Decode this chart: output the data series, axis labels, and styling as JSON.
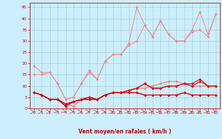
{
  "xlabel": "Vent moyen/en rafales ( km/h )",
  "background_color": "#cceeff",
  "grid_color": "#99cccc",
  "x_ticks": [
    0,
    1,
    2,
    3,
    4,
    5,
    6,
    7,
    8,
    9,
    10,
    11,
    12,
    13,
    14,
    15,
    16,
    17,
    18,
    19,
    20,
    21,
    22,
    23
  ],
  "y_ticks": [
    0,
    5,
    10,
    15,
    20,
    25,
    30,
    35,
    40,
    45
  ],
  "ylim": [
    0,
    47
  ],
  "xlim": [
    -0.5,
    23.5
  ],
  "lines_light": [
    [
      19,
      16,
      16,
      11,
      4,
      5,
      11,
      17,
      13,
      21,
      24,
      24,
      29,
      45,
      37,
      32,
      39,
      33,
      30,
      30,
      35,
      43,
      33,
      42
    ],
    [
      15,
      15,
      16,
      11,
      4,
      5,
      11,
      16,
      13,
      21,
      24,
      24,
      28,
      30,
      37,
      32,
      39,
      33,
      30,
      30,
      34,
      35,
      32,
      42
    ],
    [
      7,
      6,
      4,
      4,
      2,
      1,
      4,
      5,
      4,
      6,
      7,
      7,
      8,
      9,
      9,
      10,
      11,
      12,
      12,
      11,
      10,
      10,
      10,
      10
    ],
    [
      7,
      6,
      4,
      4,
      2,
      1,
      4,
      5,
      4,
      6,
      7,
      7,
      8,
      9,
      9,
      10,
      11,
      12,
      12,
      11,
      10,
      10,
      10,
      10
    ]
  ],
  "lines_dark": [
    [
      7,
      6,
      4,
      4,
      1,
      3,
      4,
      4,
      4,
      6,
      7,
      7,
      8,
      9,
      11,
      9,
      9,
      10,
      10,
      11,
      11,
      13,
      10,
      10
    ],
    [
      7,
      6,
      4,
      4,
      1,
      3,
      4,
      4,
      4,
      6,
      7,
      7,
      8,
      9,
      11,
      9,
      9,
      10,
      10,
      11,
      10,
      12,
      10,
      10
    ],
    [
      7,
      6,
      4,
      4,
      2,
      3,
      4,
      5,
      4,
      6,
      7,
      7,
      7,
      7,
      6,
      6,
      6,
      6,
      6,
      7,
      6,
      6,
      6,
      6
    ],
    [
      7,
      6,
      4,
      4,
      2,
      3,
      4,
      5,
      4,
      6,
      7,
      7,
      7,
      7,
      6,
      6,
      6,
      6,
      6,
      7,
      6,
      6,
      6,
      6
    ]
  ],
  "light_color": "#f08888",
  "dark_color": "#dd0000",
  "arrow_color": "#dd2222",
  "arrow_angles": [
    0,
    0,
    0,
    -25,
    -35,
    -15,
    0,
    0,
    10,
    0,
    0,
    0,
    -15,
    -25,
    -30,
    -25,
    -35,
    -25,
    -15,
    0,
    0,
    -15,
    -25,
    -35
  ]
}
